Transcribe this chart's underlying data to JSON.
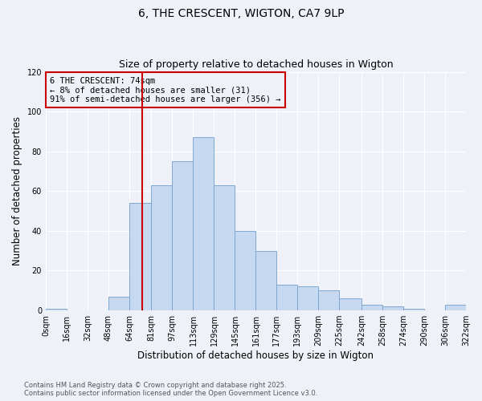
{
  "title": "6, THE CRESCENT, WIGTON, CA7 9LP",
  "subtitle": "Size of property relative to detached houses in Wigton",
  "xlabel": "Distribution of detached houses by size in Wigton",
  "ylabel": "Number of detached properties",
  "bar_left_edges": [
    0,
    16,
    32,
    48,
    64,
    81,
    97,
    113,
    129,
    145,
    161,
    177,
    193,
    209,
    225,
    242,
    258,
    274,
    290,
    306
  ],
  "bar_widths": [
    16,
    16,
    16,
    16,
    17,
    16,
    16,
    16,
    16,
    16,
    16,
    16,
    16,
    16,
    17,
    16,
    16,
    16,
    16,
    16
  ],
  "bar_heights": [
    1,
    0,
    0,
    7,
    54,
    63,
    75,
    87,
    63,
    40,
    30,
    13,
    12,
    10,
    6,
    3,
    2,
    1,
    0,
    3
  ],
  "tick_labels": [
    "0sqm",
    "16sqm",
    "32sqm",
    "48sqm",
    "64sqm",
    "81sqm",
    "97sqm",
    "113sqm",
    "129sqm",
    "145sqm",
    "161sqm",
    "177sqm",
    "193sqm",
    "209sqm",
    "225sqm",
    "242sqm",
    "258sqm",
    "274sqm",
    "290sqm",
    "306sqm",
    "322sqm"
  ],
  "bar_color": "#c6d9f0",
  "bar_edge_color": "#7fa8d1",
  "vline_x": 74,
  "vline_color": "#cc0000",
  "annotation_box_text": "6 THE CRESCENT: 74sqm\n← 8% of detached houses are smaller (31)\n91% of semi-detached houses are larger (356) →",
  "ylim": [
    0,
    120
  ],
  "yticks": [
    0,
    20,
    40,
    60,
    80,
    100,
    120
  ],
  "background_color": "#eef2f8",
  "footnote": "Contains HM Land Registry data © Crown copyright and database right 2025.\nContains public sector information licensed under the Open Government Licence v3.0.",
  "title_fontsize": 10,
  "subtitle_fontsize": 9,
  "axis_fontsize": 8.5,
  "tick_fontsize": 7,
  "ann_fontsize": 7.5
}
